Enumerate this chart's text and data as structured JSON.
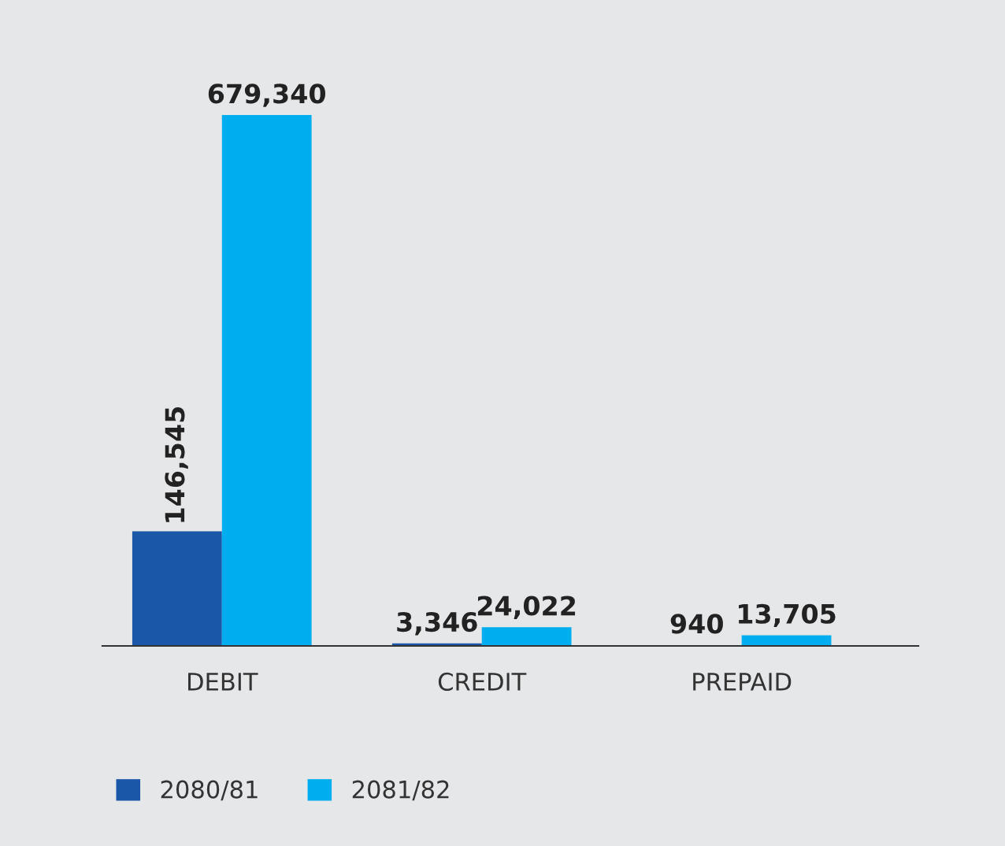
{
  "chart_data": {
    "type": "bar",
    "categories": [
      "DEBIT",
      "CREDIT",
      "PREPAID"
    ],
    "series": [
      {
        "name": "2080/81",
        "color": "#1a57a8",
        "values": [
          146545,
          3346,
          940
        ],
        "value_labels": [
          "146,545",
          "3,346",
          "940"
        ]
      },
      {
        "name": "2081/82",
        "color": "#00aeef",
        "values": [
          679340,
          24022,
          13705
        ],
        "value_labels": [
          "679,340",
          "24,022",
          "13,705"
        ]
      }
    ],
    "legend": "bottom left",
    "grid": false
  }
}
